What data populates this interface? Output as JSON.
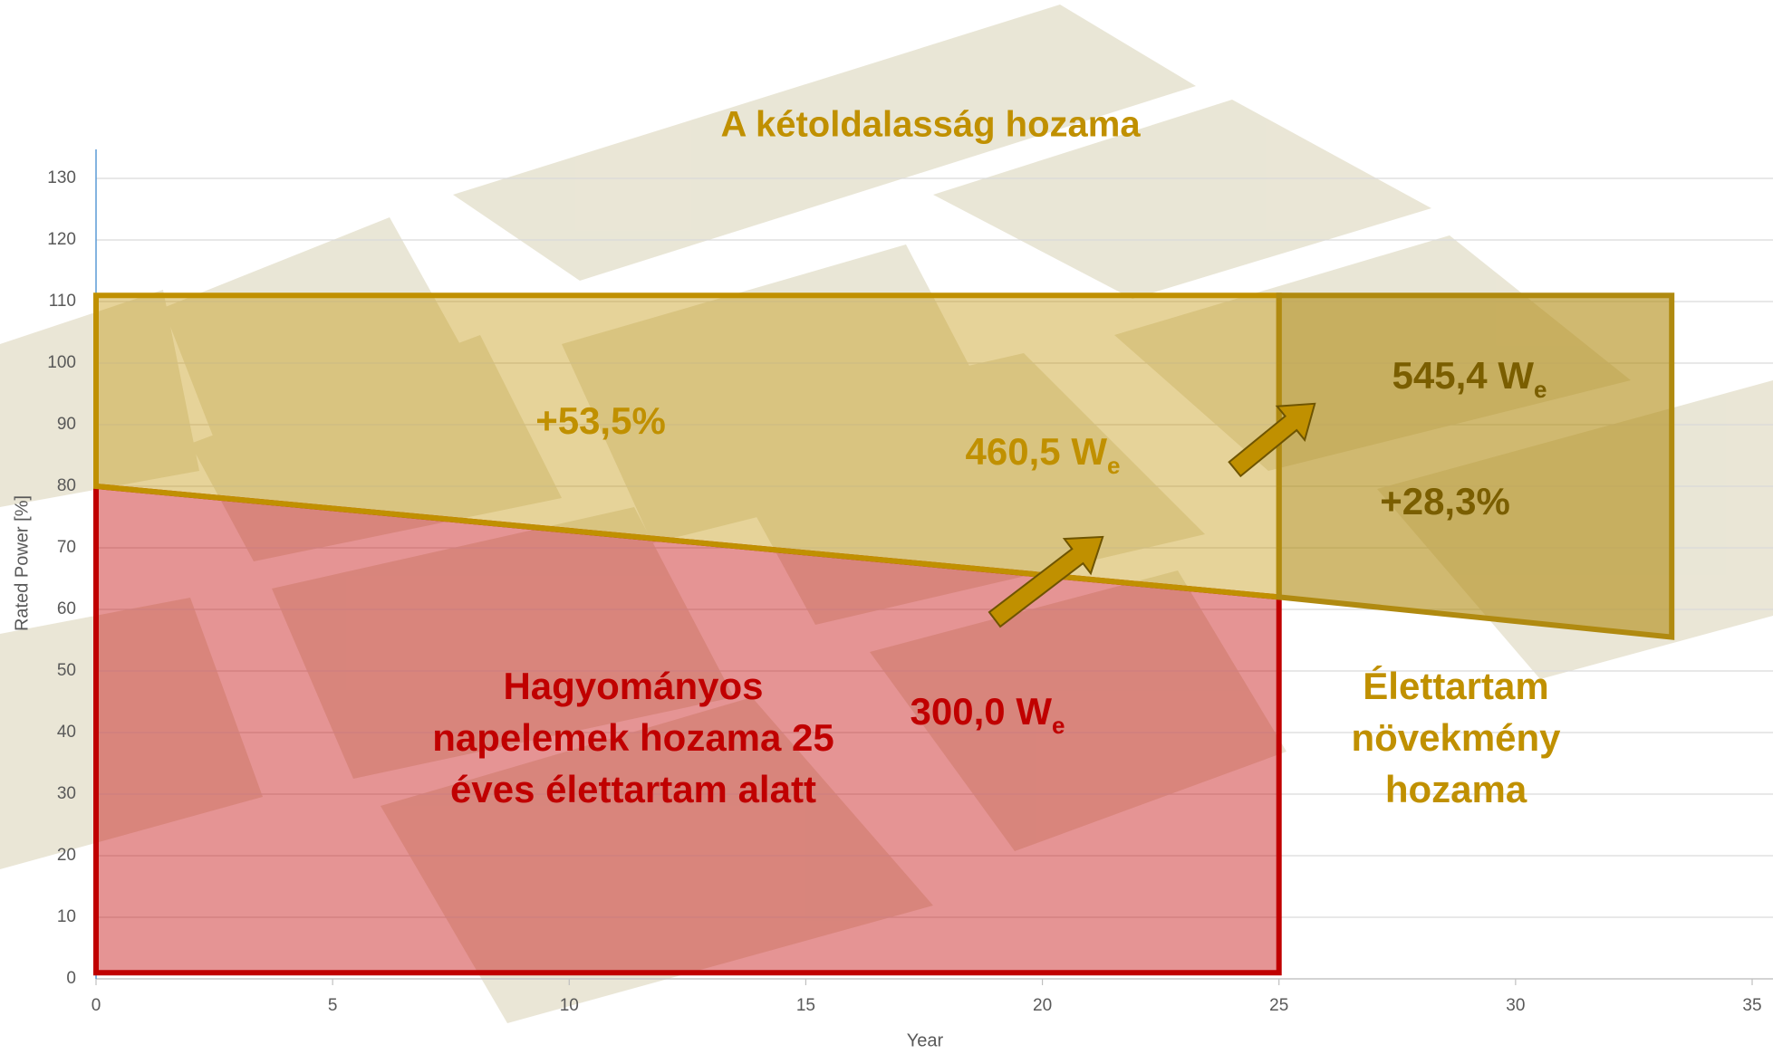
{
  "chart_data": {
    "type": "area",
    "title": "A kétoldalasság hozama",
    "x_label": "Year",
    "y_label": "Rated Power [%]",
    "xlim": [
      0,
      35
    ],
    "ylim": [
      0,
      130
    ],
    "xticks": [
      0,
      5,
      10,
      15,
      20,
      25,
      30,
      35
    ],
    "yticks": [
      0,
      10,
      20,
      30,
      40,
      50,
      60,
      70,
      80,
      90,
      100,
      110,
      120,
      130
    ],
    "grid": true,
    "series": [
      {
        "color": "#c00000",
        "x": [
          0,
          25
        ],
        "values": [
          80,
          62
        ],
        "base": [
          1,
          1
        ]
      },
      {
        "color": "#c09000",
        "x": [
          0,
          25
        ],
        "values": [
          111,
          111
        ],
        "base": [
          80,
          62
        ]
      },
      {
        "color": "#b08a10",
        "x": [
          25,
          33.3
        ],
        "values": [
          111,
          111
        ],
        "base": [
          62,
          55.5
        ]
      }
    ],
    "annotations": [
      {
        "lines": [
          "+53,5%"
        ],
        "color": "#c09000"
      },
      {
        "lines": [
          "460,5 W"
        ],
        "sub": "e",
        "color": "#c09000"
      },
      {
        "lines": [
          "545,4 W"
        ],
        "sub": "e",
        "color": "#7a5e00"
      },
      {
        "lines": [
          "+28,3%"
        ],
        "color": "#7a5e00"
      },
      {
        "lines": [
          "300,0 W"
        ],
        "sub": "e",
        "color": "#c00000"
      },
      {
        "lines": [
          "Hagyományos",
          "napelemek hozama 25",
          "éves élettartam alatt"
        ],
        "color": "#c00000"
      },
      {
        "lines": [
          "Élettartam",
          "növekmény",
          "hozama"
        ],
        "color": "#c09000"
      }
    ]
  }
}
